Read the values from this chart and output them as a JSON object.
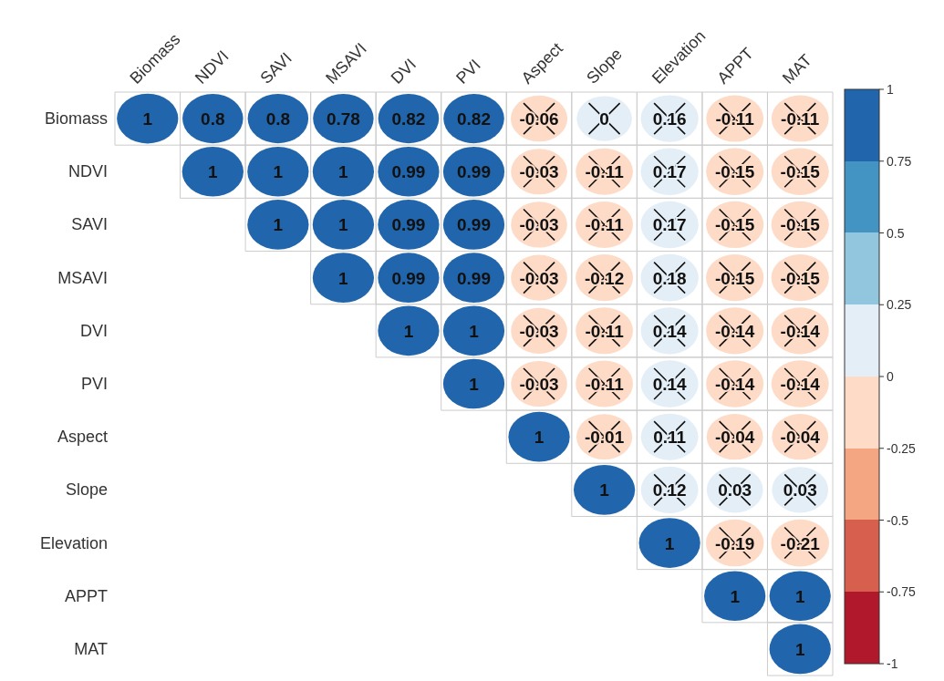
{
  "chart_data": {
    "type": "heatmap",
    "categories": [
      "Biomass",
      "NDVI",
      "SAVI",
      "MSAVI",
      "DVI",
      "PVI",
      "Aspect",
      "Slope",
      "Elevation",
      "APPT",
      "MAT"
    ],
    "y_categories": [
      "Biomass",
      "NDVI",
      "SAVI",
      "MSAVI",
      "DVI",
      "PVI",
      "Aspect",
      "Slope",
      "Elevation",
      "APPT",
      "MAT"
    ],
    "cells": [
      [
        1,
        0.8,
        0.8,
        0.78,
        0.82,
        0.82,
        -0.06,
        0,
        0.16,
        -0.11,
        -0.11
      ],
      [
        null,
        1,
        1,
        1,
        0.99,
        0.99,
        -0.03,
        -0.11,
        0.17,
        -0.15,
        -0.15
      ],
      [
        null,
        null,
        1,
        1,
        0.99,
        0.99,
        -0.03,
        -0.11,
        0.17,
        -0.15,
        -0.15
      ],
      [
        null,
        null,
        null,
        1,
        0.99,
        0.99,
        -0.03,
        -0.12,
        0.18,
        -0.15,
        -0.15
      ],
      [
        null,
        null,
        null,
        null,
        1,
        1,
        -0.03,
        -0.11,
        0.14,
        -0.14,
        -0.14
      ],
      [
        null,
        null,
        null,
        null,
        null,
        1,
        -0.03,
        -0.11,
        0.14,
        -0.14,
        -0.14
      ],
      [
        null,
        null,
        null,
        null,
        null,
        null,
        1,
        -0.01,
        0.11,
        -0.04,
        -0.04
      ],
      [
        null,
        null,
        null,
        null,
        null,
        null,
        null,
        1,
        0.12,
        0.03,
        0.03
      ],
      [
        null,
        null,
        null,
        null,
        null,
        null,
        null,
        null,
        1,
        -0.19,
        -0.21
      ],
      [
        null,
        null,
        null,
        null,
        null,
        null,
        null,
        null,
        null,
        1,
        1
      ],
      [
        null,
        null,
        null,
        null,
        null,
        null,
        null,
        null,
        null,
        null,
        1
      ]
    ],
    "data_labels": true,
    "clim": [
      -1,
      1
    ],
    "cticks": [
      -1,
      -0.75,
      -0.5,
      -0.25,
      0,
      0.25,
      0.5,
      0.75,
      1
    ]
  }
}
